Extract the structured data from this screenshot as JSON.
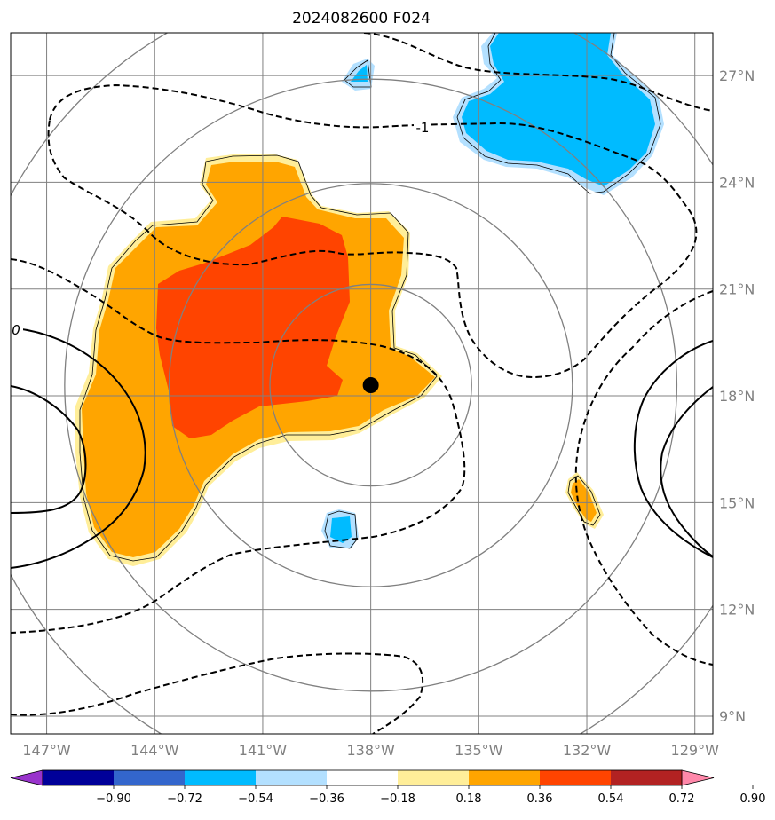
{
  "title": "2024082600 F024",
  "colors": {
    "grid": "#808080",
    "ring": "#808080",
    "center_dot": "#000000",
    "contour": "#000000"
  },
  "map": {
    "lon_range": [
      -148,
      -128.5
    ],
    "lat_range": [
      8.5,
      28.2
    ],
    "center_marker": {
      "lon": -138.0,
      "lat": 18.3
    },
    "range_rings_deg": [
      2.8,
      5.6,
      8.5,
      11.3
    ],
    "lon_ticks": [
      {
        "value": -147,
        "label": "147°W"
      },
      {
        "value": -144,
        "label": "144°W"
      },
      {
        "value": -141,
        "label": "141°W"
      },
      {
        "value": -138,
        "label": "138°W"
      },
      {
        "value": -135,
        "label": "135°W"
      },
      {
        "value": -132,
        "label": "132°W"
      },
      {
        "value": -129,
        "label": "129°W"
      }
    ],
    "lat_ticks": [
      {
        "value": 9,
        "label": "9°N"
      },
      {
        "value": 12,
        "label": "12°N"
      },
      {
        "value": 15,
        "label": "15°N"
      },
      {
        "value": 18,
        "label": "18°N"
      },
      {
        "value": 21,
        "label": "21°N"
      },
      {
        "value": 24,
        "label": "24°N"
      },
      {
        "value": 27,
        "label": "27°N"
      }
    ],
    "contour_labels": [
      {
        "text": "-1",
        "lon": -136.3,
        "lat": 25.2
      },
      {
        "text": "0",
        "lon": -148.0,
        "lat": 19.8
      }
    ]
  },
  "colorbar": {
    "colors": [
      "#9933cc",
      "#000099",
      "#3366cc",
      "#00bbff",
      "#b3e0ff",
      "#ffffff",
      "#ffee99",
      "#ffa500",
      "#ff4400",
      "#b22222",
      "#ff88aa"
    ],
    "tick_labels": [
      "−0.90",
      "−0.72",
      "−0.54",
      "−0.36",
      "−0.18",
      "0.18",
      "0.36",
      "0.54",
      "0.72",
      "0.90"
    ]
  }
}
